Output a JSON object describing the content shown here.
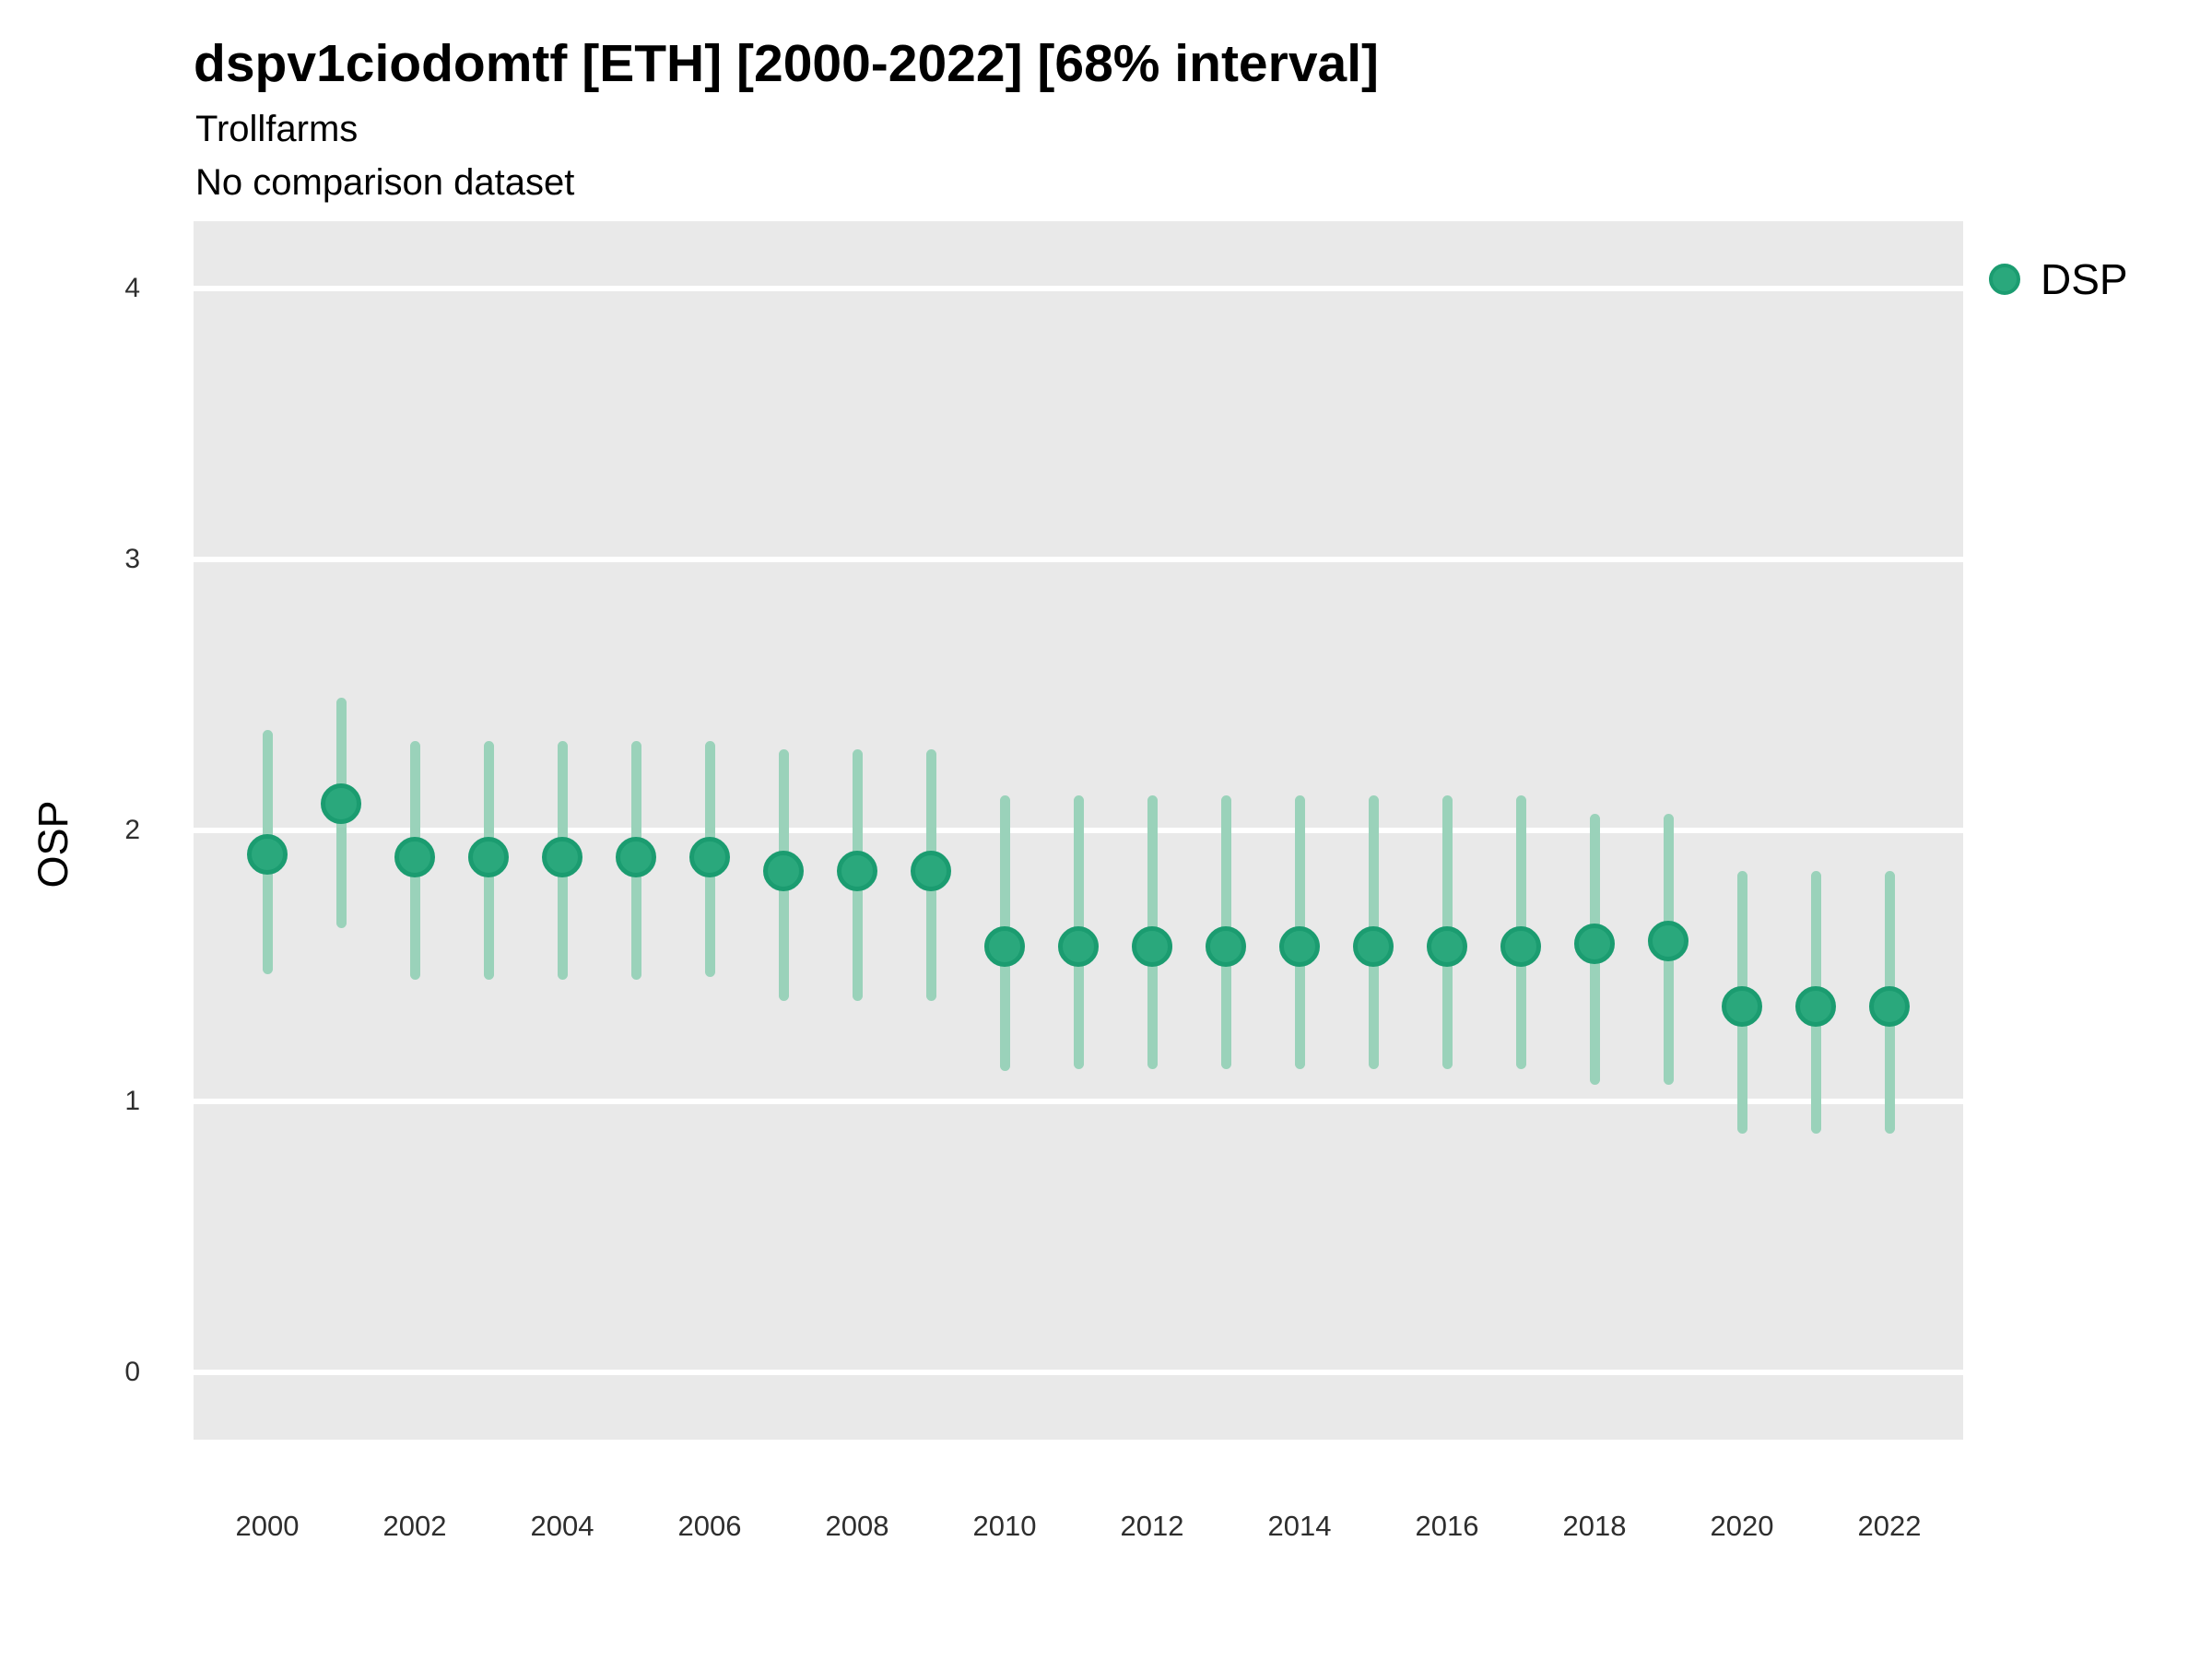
{
  "header": {
    "title": "dspv1ciodomtf [ETH] [2000-2022] [68% interval]",
    "subtitle": "Trollfarms",
    "note": "No comparison dataset"
  },
  "y_axis": {
    "label": "OSP",
    "ticks": [
      0,
      1,
      2,
      3,
      4
    ]
  },
  "x_axis": {
    "ticks": [
      2000,
      2002,
      2004,
      2006,
      2008,
      2010,
      2012,
      2014,
      2016,
      2018,
      2020,
      2022
    ]
  },
  "legend": {
    "position": "top-right",
    "items": [
      {
        "label": "DSP",
        "color": "#2aa87c"
      }
    ]
  },
  "colors": {
    "point_fill": "#2aa87c",
    "point_stroke": "#1b9c70",
    "interval_bar": "#9ad2ba",
    "panel_bg": "#e9e9e9",
    "gridline": "#ffffff",
    "text": "#000000"
  },
  "chart_data": {
    "type": "scatter",
    "title": "dspv1ciodomtf [ETH] [2000-2022] [68% interval]",
    "subtitle": "Trollfarms",
    "note": "No comparison dataset",
    "xlabel": "",
    "ylabel": "OSP",
    "xlim": [
      1999,
      2023
    ],
    "ylim": [
      -0.25,
      4.25
    ],
    "x_ticks": [
      2000,
      2002,
      2004,
      2006,
      2008,
      2010,
      2012,
      2014,
      2016,
      2018,
      2020,
      2022
    ],
    "y_ticks": [
      0,
      1,
      2,
      3,
      4
    ],
    "grid": "horizontal-major-only",
    "interval_level": "68%",
    "legend_position": "top-right",
    "series": [
      {
        "name": "DSP",
        "points": [
          {
            "x": 2000,
            "y": 1.91,
            "lo": 1.47,
            "hi": 2.37
          },
          {
            "x": 2001,
            "y": 2.1,
            "lo": 1.64,
            "hi": 2.49
          },
          {
            "x": 2002,
            "y": 1.9,
            "lo": 1.45,
            "hi": 2.33
          },
          {
            "x": 2003,
            "y": 1.9,
            "lo": 1.45,
            "hi": 2.33
          },
          {
            "x": 2004,
            "y": 1.9,
            "lo": 1.45,
            "hi": 2.33
          },
          {
            "x": 2005,
            "y": 1.9,
            "lo": 1.45,
            "hi": 2.33
          },
          {
            "x": 2006,
            "y": 1.9,
            "lo": 1.46,
            "hi": 2.33
          },
          {
            "x": 2007,
            "y": 1.85,
            "lo": 1.37,
            "hi": 2.3
          },
          {
            "x": 2008,
            "y": 1.85,
            "lo": 1.37,
            "hi": 2.3
          },
          {
            "x": 2009,
            "y": 1.85,
            "lo": 1.37,
            "hi": 2.3
          },
          {
            "x": 2010,
            "y": 1.57,
            "lo": 1.11,
            "hi": 2.13
          },
          {
            "x": 2011,
            "y": 1.57,
            "lo": 1.12,
            "hi": 2.13
          },
          {
            "x": 2012,
            "y": 1.57,
            "lo": 1.12,
            "hi": 2.13
          },
          {
            "x": 2013,
            "y": 1.57,
            "lo": 1.12,
            "hi": 2.13
          },
          {
            "x": 2014,
            "y": 1.57,
            "lo": 1.12,
            "hi": 2.13
          },
          {
            "x": 2015,
            "y": 1.57,
            "lo": 1.12,
            "hi": 2.13
          },
          {
            "x": 2016,
            "y": 1.57,
            "lo": 1.12,
            "hi": 2.13
          },
          {
            "x": 2017,
            "y": 1.57,
            "lo": 1.12,
            "hi": 2.13
          },
          {
            "x": 2018,
            "y": 1.58,
            "lo": 1.06,
            "hi": 2.06
          },
          {
            "x": 2019,
            "y": 1.59,
            "lo": 1.06,
            "hi": 2.06
          },
          {
            "x": 2020,
            "y": 1.35,
            "lo": 0.88,
            "hi": 1.85
          },
          {
            "x": 2021,
            "y": 1.35,
            "lo": 0.88,
            "hi": 1.85
          },
          {
            "x": 2022,
            "y": 1.35,
            "lo": 0.88,
            "hi": 1.85
          }
        ]
      }
    ]
  }
}
